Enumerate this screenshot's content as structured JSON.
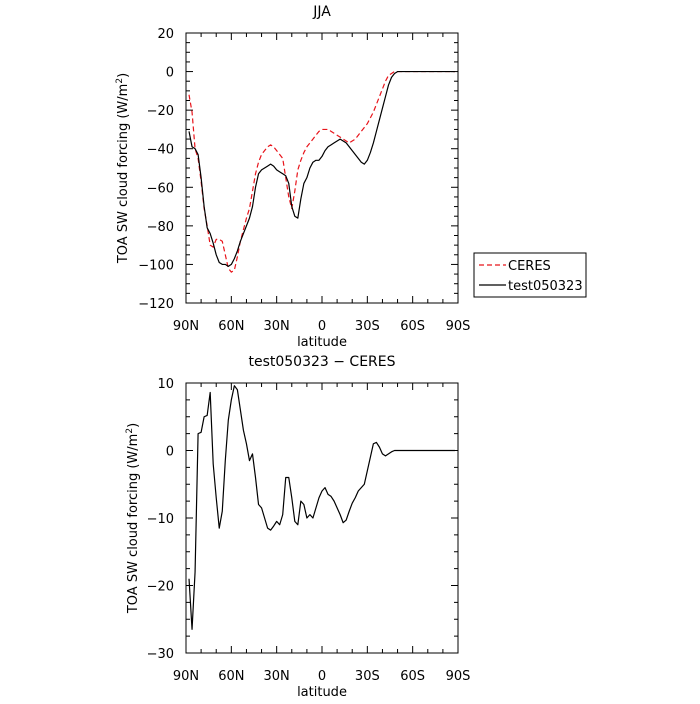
{
  "chart_data": [
    {
      "type": "line",
      "title": "JJA",
      "xlabel": "latitude",
      "ylabel_main": "TOA SW cloud forcing (W/m",
      "ylabel_sup": "2",
      "ylabel_close": ")",
      "xlim": [
        90,
        -90
      ],
      "ylim": [
        -120,
        20
      ],
      "x_ticks": [
        90,
        60,
        30,
        0,
        -30,
        -60,
        -90
      ],
      "x_tick_labels": [
        "90N",
        "60N",
        "30N",
        "0",
        "30S",
        "60S",
        "90S"
      ],
      "y_ticks": [
        20,
        0,
        -20,
        -40,
        -60,
        -80,
        -100,
        -120
      ],
      "y_tick_labels": [
        "20",
        "0",
        "−20",
        "−40",
        "−60",
        "−80",
        "−100",
        "−120"
      ],
      "legend_position": "right",
      "series": [
        {
          "name": "CERES",
          "color": "#e8141b",
          "dash": "dashed",
          "x": [
            88,
            86,
            84,
            82,
            80,
            78,
            76,
            74,
            72,
            70,
            68,
            66,
            64,
            62,
            60,
            58,
            56,
            54,
            52,
            50,
            48,
            46,
            44,
            42,
            40,
            38,
            36,
            34,
            32,
            30,
            28,
            26,
            24,
            22,
            20,
            18,
            16,
            14,
            12,
            10,
            8,
            6,
            4,
            2,
            0,
            -2,
            -4,
            -6,
            -8,
            -10,
            -12,
            -14,
            -16,
            -18,
            -20,
            -22,
            -24,
            -26,
            -28,
            -30,
            -32,
            -34,
            -36,
            -38,
            -40,
            -42,
            -44,
            -46,
            -48,
            -50,
            -52,
            -54,
            -56,
            -58,
            -60,
            -62,
            -64,
            -66,
            -68,
            -70,
            -72,
            -74,
            -76,
            -78,
            -80,
            -82,
            -84,
            -86,
            -88
          ],
          "values": [
            -12,
            -21,
            -40,
            -45,
            -57,
            -71,
            -80,
            -90,
            -91,
            -87,
            -87,
            -88,
            -95,
            -102,
            -104,
            -103,
            -96,
            -88,
            -82,
            -76,
            -71,
            -62,
            -53,
            -47,
            -43,
            -41,
            -39,
            -38,
            -39,
            -41,
            -43,
            -45,
            -55,
            -65,
            -71,
            -62,
            -51,
            -46,
            -42,
            -39,
            -37,
            -35,
            -33,
            -31,
            -30,
            -30,
            -30,
            -31,
            -32,
            -33,
            -34,
            -35,
            -36,
            -37,
            -36,
            -35,
            -33,
            -31,
            -29,
            -27,
            -24,
            -21,
            -17,
            -13,
            -9,
            -5,
            -2,
            -1,
            0,
            0,
            0,
            0,
            0,
            0,
            0,
            0,
            0,
            0,
            0,
            0,
            0,
            0,
            0,
            0,
            0,
            0,
            0,
            0,
            0
          ]
        },
        {
          "name": "test050323",
          "color": "#000000",
          "dash": "solid",
          "x": [
            88,
            86,
            84,
            82,
            80,
            78,
            76,
            74,
            72,
            70,
            68,
            66,
            64,
            62,
            60,
            58,
            56,
            54,
            52,
            50,
            48,
            46,
            44,
            42,
            40,
            38,
            36,
            34,
            32,
            30,
            28,
            26,
            24,
            22,
            20,
            18,
            16,
            14,
            12,
            10,
            8,
            6,
            4,
            2,
            0,
            -2,
            -4,
            -6,
            -8,
            -10,
            -12,
            -14,
            -16,
            -18,
            -20,
            -22,
            -24,
            -26,
            -28,
            -30,
            -32,
            -34,
            -36,
            -38,
            -40,
            -42,
            -44,
            -46,
            -48,
            -50,
            -52,
            -54,
            -56,
            -58,
            -60,
            -62,
            -64,
            -66,
            -68,
            -70,
            -72,
            -74,
            -76,
            -78,
            -80,
            -82,
            -84,
            -86,
            -88
          ],
          "values": [
            -31,
            -39,
            -40,
            -43,
            -55,
            -70,
            -81,
            -84,
            -89,
            -95,
            -99,
            -100,
            -100,
            -101,
            -100,
            -97,
            -93,
            -88,
            -84,
            -80,
            -76,
            -70,
            -60,
            -53,
            -51,
            -50,
            -49,
            -48,
            -49,
            -51,
            -52,
            -53,
            -54,
            -58,
            -70,
            -75,
            -76,
            -66,
            -58,
            -55,
            -50,
            -47,
            -46,
            -46,
            -44,
            -41,
            -39,
            -38,
            -37,
            -36,
            -35,
            -36,
            -37,
            -39,
            -41,
            -43,
            -45,
            -47,
            -48,
            -46,
            -42,
            -37,
            -31,
            -25,
            -19,
            -13,
            -7,
            -3,
            -1,
            0,
            0,
            0,
            0,
            0,
            0,
            0,
            0,
            0,
            0,
            0,
            0,
            0,
            0,
            0,
            0,
            0,
            0,
            0,
            0
          ]
        }
      ]
    },
    {
      "type": "line",
      "title": "test050323 − CERES",
      "xlabel": "latitude",
      "ylabel_main": "TOA SW cloud forcing (W/m",
      "ylabel_sup": "2",
      "ylabel_close": ")",
      "xlim": [
        90,
        -90
      ],
      "ylim": [
        -30,
        10
      ],
      "x_ticks": [
        90,
        60,
        30,
        0,
        -30,
        -60,
        -90
      ],
      "x_tick_labels": [
        "90N",
        "60N",
        "30N",
        "0",
        "30S",
        "60S",
        "90S"
      ],
      "y_ticks": [
        10,
        0,
        -10,
        -20,
        -30
      ],
      "y_tick_labels": [
        "10",
        "0",
        "−10",
        "−20",
        "−30"
      ],
      "series": [
        {
          "color": "#000000",
          "dash": "solid",
          "x": [
            88,
            86,
            84,
            82,
            80,
            78,
            76,
            74,
            72,
            70,
            68,
            66,
            64,
            62,
            60,
            58,
            56,
            54,
            52,
            50,
            48,
            46,
            44,
            42,
            40,
            38,
            36,
            34,
            32,
            30,
            28,
            26,
            24,
            22,
            20,
            18,
            16,
            14,
            12,
            10,
            8,
            6,
            4,
            2,
            0,
            -2,
            -4,
            -6,
            -8,
            -10,
            -12,
            -14,
            -16,
            -18,
            -20,
            -22,
            -24,
            -26,
            -28,
            -30,
            -32,
            -34,
            -36,
            -38,
            -40,
            -42,
            -44,
            -46,
            -48,
            -50,
            -52,
            -54,
            -56,
            -58,
            -60,
            -62,
            -64,
            -66,
            -68,
            -70,
            -72,
            -74,
            -76,
            -78,
            -80,
            -82,
            -84,
            -86,
            -88
          ],
          "values": [
            -19,
            -26.5,
            -18,
            2.5,
            2.7,
            5,
            5.2,
            8.6,
            -2,
            -7,
            -11.5,
            -9,
            -1.5,
            4.5,
            7.5,
            9.6,
            9,
            6,
            3,
            1,
            -1.5,
            -0.5,
            -4,
            -8,
            -8.5,
            -10,
            -11.5,
            -11.8,
            -11.2,
            -10.5,
            -11,
            -9.5,
            -4,
            -4,
            -7,
            -10.5,
            -11,
            -7.5,
            -8,
            -10,
            -9.5,
            -10,
            -8.5,
            -7,
            -6,
            -5.5,
            -6.5,
            -6.8,
            -7.5,
            -8.5,
            -9.5,
            -10.7,
            -10.3,
            -9,
            -7.8,
            -7,
            -6,
            -5.5,
            -5,
            -3,
            -1,
            1,
            1.2,
            0.5,
            -0.5,
            -0.8,
            -0.5,
            -0.2,
            0,
            0,
            0,
            0,
            0,
            0,
            0,
            0,
            0,
            0,
            0,
            0,
            0,
            0,
            0,
            0,
            0,
            0,
            0,
            0,
            0
          ]
        }
      ]
    }
  ]
}
